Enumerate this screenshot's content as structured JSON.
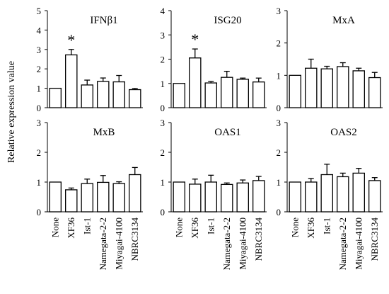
{
  "figure": {
    "ylabel": "Relative expression value"
  },
  "colors": {
    "bar_fill": "#ffffff",
    "stroke": "#000000"
  },
  "chart_data": [
    {
      "type": "bar",
      "title": "IFNβ1",
      "categories": [
        "None",
        "XF36",
        "Ist-1",
        "Namegata-2-2",
        "Miyagai-4100",
        "NBRC3134"
      ],
      "values": [
        1.0,
        2.72,
        1.17,
        1.35,
        1.33,
        0.93
      ],
      "errors": [
        0.0,
        0.28,
        0.25,
        0.18,
        0.33,
        0.06
      ],
      "annotations": [
        "",
        "*",
        "",
        "",
        "",
        ""
      ],
      "ylim": [
        0,
        5
      ],
      "yticks": [
        "0",
        "1",
        "2",
        "3",
        "4",
        "5"
      ],
      "xlabel": "",
      "ylabel": "",
      "grid": false
    },
    {
      "type": "bar",
      "title": "ISG20",
      "categories": [
        "None",
        "XF36",
        "Ist-1",
        "Namegata-2-2",
        "Miyagai-4100",
        "NBRC3134"
      ],
      "values": [
        1.0,
        2.05,
        1.02,
        1.25,
        1.17,
        1.06
      ],
      "errors": [
        0.0,
        0.37,
        0.06,
        0.25,
        0.05,
        0.16
      ],
      "annotations": [
        "",
        "*",
        "",
        "",
        "",
        ""
      ],
      "ylim": [
        0,
        4
      ],
      "yticks": [
        "0",
        "1",
        "2",
        "3",
        "4"
      ],
      "xlabel": "",
      "ylabel": "",
      "grid": false
    },
    {
      "type": "bar",
      "title": "MxA",
      "categories": [
        "None",
        "XF36",
        "Ist-1",
        "Namegata-2-2",
        "Miyagai-4100",
        "NBRC3134"
      ],
      "values": [
        1.0,
        1.22,
        1.2,
        1.27,
        1.14,
        0.93
      ],
      "errors": [
        0.0,
        0.28,
        0.08,
        0.12,
        0.08,
        0.16
      ],
      "annotations": [
        "",
        "",
        "",
        "",
        "",
        ""
      ],
      "ylim": [
        0,
        3
      ],
      "yticks": [
        "0",
        "1",
        "2",
        "3"
      ],
      "xlabel": "",
      "ylabel": "",
      "grid": false
    },
    {
      "type": "bar",
      "title": "MxB",
      "categories": [
        "None",
        "XF36",
        "Ist-1",
        "Namegata-2-2",
        "Miyagai-4100",
        "NBRC3134"
      ],
      "values": [
        1.0,
        0.74,
        0.95,
        0.99,
        0.95,
        1.25
      ],
      "errors": [
        0.0,
        0.06,
        0.15,
        0.23,
        0.06,
        0.24
      ],
      "annotations": [
        "",
        "",
        "",
        "",
        "",
        ""
      ],
      "ylim": [
        0,
        3
      ],
      "yticks": [
        "0",
        "1",
        "2",
        "3"
      ],
      "xlabel": "",
      "ylabel": "",
      "grid": false
    },
    {
      "type": "bar",
      "title": "OAS1",
      "categories": [
        "None",
        "XF36",
        "Ist-1",
        "Namegata-2-2",
        "Miyagai-4100",
        "NBRC3134"
      ],
      "values": [
        1.0,
        0.93,
        1.0,
        0.92,
        0.97,
        1.05
      ],
      "errors": [
        0.0,
        0.17,
        0.23,
        0.05,
        0.1,
        0.14
      ],
      "annotations": [
        "",
        "",
        "",
        "",
        "",
        ""
      ],
      "ylim": [
        0,
        3
      ],
      "yticks": [
        "0",
        "1",
        "2",
        "3"
      ],
      "xlabel": "",
      "ylabel": "",
      "grid": false
    },
    {
      "type": "bar",
      "title": "OAS2",
      "categories": [
        "None",
        "XF36",
        "Ist-1",
        "Namegata-2-2",
        "Miyagai-4100",
        "NBRC3134"
      ],
      "values": [
        1.0,
        1.0,
        1.25,
        1.18,
        1.3,
        1.05
      ],
      "errors": [
        0.0,
        0.12,
        0.35,
        0.12,
        0.16,
        0.1
      ],
      "annotations": [
        "",
        "",
        "",
        "",
        "",
        ""
      ],
      "ylim": [
        0,
        3
      ],
      "yticks": [
        "0",
        "1",
        "2",
        "3"
      ],
      "xlabel": "",
      "ylabel": "",
      "grid": false
    }
  ]
}
